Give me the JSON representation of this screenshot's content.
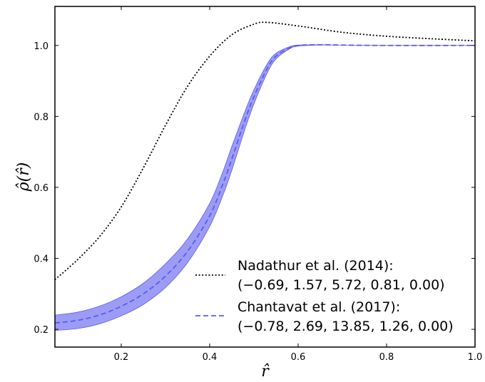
{
  "chart_data": {
    "type": "line",
    "xlabel": "r̂",
    "ylabel": "ρ̂(r̂)",
    "xlim": [
      0.05,
      1.0
    ],
    "ylim": [
      0.15,
      1.11
    ],
    "xticks": [
      0.2,
      0.4,
      0.6,
      0.8,
      1.0
    ],
    "yticks": [
      0.2,
      0.4,
      0.6,
      0.8,
      1.0
    ],
    "xtick_labels": [
      "0.2",
      "0.4",
      "0.6",
      "0.8",
      "1.0"
    ],
    "ytick_labels": [
      "0.2",
      "0.4",
      "0.6",
      "0.8",
      "1.0"
    ],
    "grid": false,
    "legend_position": "lower-right",
    "series": [
      {
        "name": "Nadathur et al. (2014):",
        "params": "(−0.69, 1.57, 5.72, 0.81, 0.00)",
        "style": "dotted",
        "color": "#000000",
        "x": [
          0.05,
          0.1,
          0.15,
          0.2,
          0.25,
          0.3,
          0.35,
          0.4,
          0.45,
          0.5,
          0.53,
          0.6,
          0.7,
          0.8,
          0.9,
          1.0
        ],
        "y": [
          0.34,
          0.395,
          0.46,
          0.545,
          0.655,
          0.775,
          0.885,
          0.97,
          1.03,
          1.06,
          1.065,
          1.055,
          1.037,
          1.026,
          1.019,
          1.013
        ]
      },
      {
        "name": "Chantavat et al. (2017):",
        "params": "(−0.78, 2.69, 13.85, 1.26, 0.00)",
        "style": "dashed",
        "color": "#5b5bf0",
        "band_color": "#7b7bf2",
        "x": [
          0.05,
          0.1,
          0.15,
          0.2,
          0.25,
          0.3,
          0.35,
          0.4,
          0.43,
          0.45,
          0.48,
          0.5,
          0.53,
          0.55,
          0.58,
          0.6,
          0.65,
          0.7,
          0.8,
          1.0
        ],
        "y": [
          0.218,
          0.225,
          0.24,
          0.265,
          0.3,
          0.35,
          0.42,
          0.52,
          0.61,
          0.68,
          0.79,
          0.855,
          0.935,
          0.97,
          0.993,
          1.0,
          1.002,
          1.001,
          1.0,
          1.0
        ],
        "y_lower": [
          0.197,
          0.202,
          0.215,
          0.238,
          0.27,
          0.318,
          0.388,
          0.49,
          0.578,
          0.648,
          0.765,
          0.835,
          0.922,
          0.962,
          0.99,
          0.998,
          1.001,
          1.001,
          1.0,
          1.0
        ],
        "y_upper": [
          0.24,
          0.248,
          0.265,
          0.292,
          0.33,
          0.385,
          0.455,
          0.555,
          0.645,
          0.715,
          0.815,
          0.875,
          0.948,
          0.978,
          0.996,
          1.001,
          1.002,
          1.001,
          1.0,
          1.0
        ]
      }
    ]
  }
}
